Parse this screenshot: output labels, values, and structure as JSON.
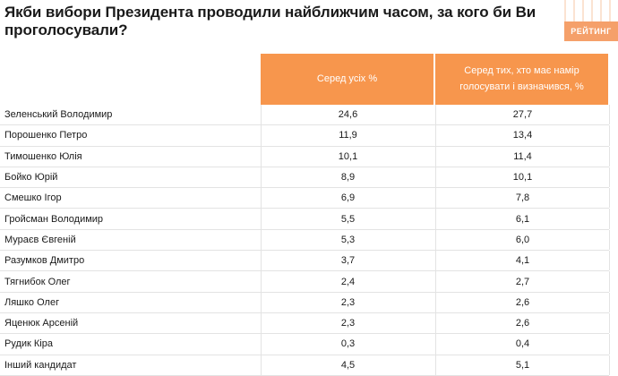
{
  "title": "Якби вибори Президента проводили найближчим часом, за кого би Ви проголосували?",
  "logo": "РЕЙТИНГ",
  "chart_data": {
    "type": "table",
    "columns": [
      "Серед усіх %",
      "Серед тих, хто має намір голосувати і визначився, %"
    ],
    "rows": [
      {
        "name": "Зеленський Володимир",
        "all": "24,6",
        "decided": "27,7"
      },
      {
        "name": "Порошенко Петро",
        "all": "11,9",
        "decided": "13,4"
      },
      {
        "name": "Тимошенко Юлія",
        "all": "10,1",
        "decided": "11,4"
      },
      {
        "name": "Бойко Юрій",
        "all": "8,9",
        "decided": "10,1"
      },
      {
        "name": "Смешко Ігор",
        "all": "6,9",
        "decided": "7,8"
      },
      {
        "name": "Гройсман Володимир",
        "all": "5,5",
        "decided": "6,1"
      },
      {
        "name": "Мураєв Євгеній",
        "all": "5,3",
        "decided": "6,0"
      },
      {
        "name": "Разумков Дмитро",
        "all": "3,7",
        "decided": "4,1"
      },
      {
        "name": "Тягнибок Олег",
        "all": "2,4",
        "decided": "2,7"
      },
      {
        "name": "Ляшко Олег",
        "all": "2,3",
        "decided": "2,6"
      },
      {
        "name": "Яценюк  Арсеній",
        "all": "2,3",
        "decided": "2,6"
      },
      {
        "name": "Рудик Кіра",
        "all": "0,3",
        "decided": "0,4"
      },
      {
        "name": "Інший кандидат",
        "all": "4,5",
        "decided": "5,1"
      }
    ]
  },
  "colors": {
    "header_bg": "#f7964d",
    "header_text": "#ffffff"
  }
}
